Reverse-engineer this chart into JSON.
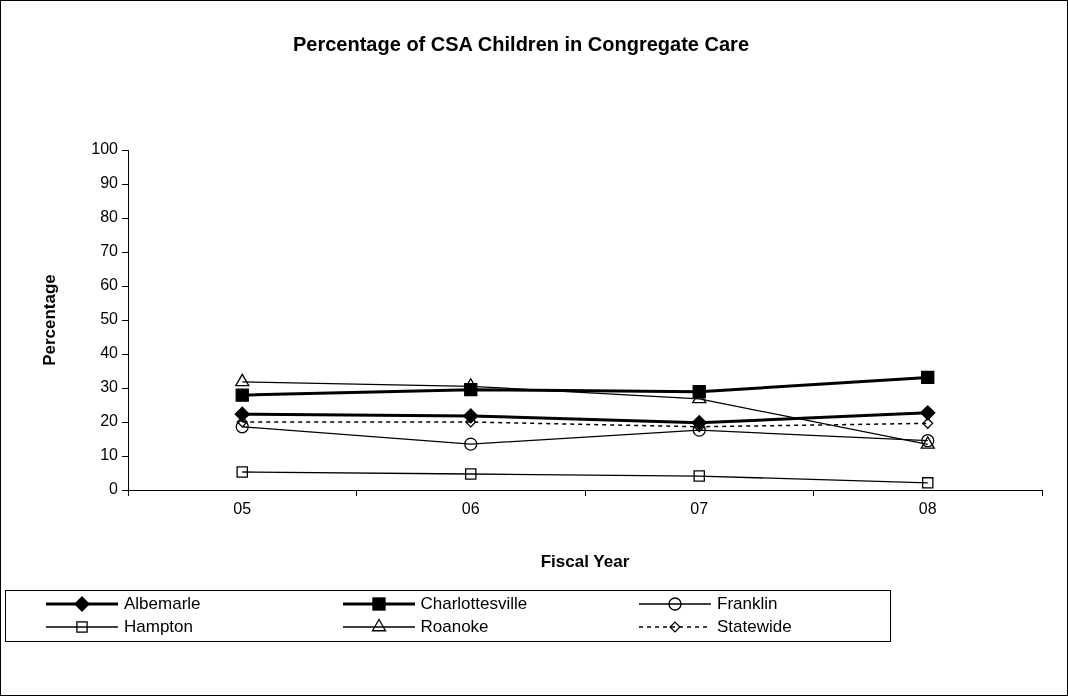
{
  "chart_data": {
    "type": "line",
    "title": "Percentage of CSA Children in Congregate Care",
    "xlabel": "Fiscal Year",
    "ylabel": "Percentage",
    "categories": [
      "05",
      "06",
      "07",
      "08"
    ],
    "ylim": [
      0,
      100
    ],
    "yticks": [
      0,
      10,
      20,
      30,
      40,
      50,
      60,
      70,
      80,
      90,
      100
    ],
    "grid": false,
    "legend": "bottom",
    "series": [
      {
        "name": "Albemarle",
        "color": "#000000",
        "marker": "diamond",
        "line_style": "solid",
        "values": [
          22.3,
          21.8,
          19.8,
          22.7
        ]
      },
      {
        "name": "Charlottesville",
        "color": "#000000",
        "marker": "square",
        "line_style": "solid",
        "values": [
          27.9,
          29.5,
          28.9,
          33.1
        ]
      },
      {
        "name": "Franklin",
        "color": "#000000",
        "marker": "circle",
        "line_style": "solid",
        "values": [
          18.6,
          13.5,
          17.6,
          14.5
        ]
      },
      {
        "name": "Hampton",
        "color": "#000000",
        "marker": "square",
        "line_style": "solid",
        "values": [
          5.3,
          4.7,
          4.1,
          2.1
        ]
      },
      {
        "name": "Roanoke",
        "color": "#000000",
        "marker": "triangle",
        "line_style": "solid",
        "values": [
          31.8,
          30.5,
          26.8,
          13.4
        ]
      },
      {
        "name": "Statewide",
        "color": "#000000",
        "marker": "diamond",
        "line_style": "dashed",
        "values": [
          20.0,
          20.0,
          18.6,
          19.6
        ]
      }
    ]
  }
}
